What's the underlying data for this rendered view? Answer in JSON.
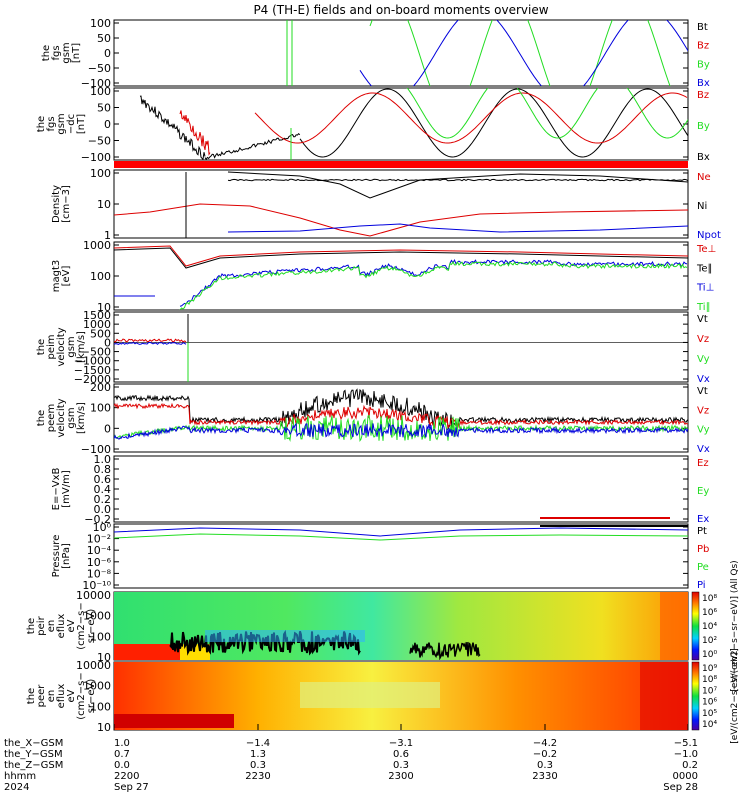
{
  "title": "P4 (TH-E) fields and on-board moments overview",
  "colors": {
    "black": "#000000",
    "red": "#dd0000",
    "green": "#22dd22",
    "blue": "#0000dd",
    "bar": "#ff0000"
  },
  "chart_data": {
    "type": "line",
    "panels": [
      {
        "id": "fgs_gsm",
        "ylabel": [
          "the",
          "fgs",
          "gsm",
          "[nT]"
        ],
        "ticks": [
          "100",
          "50",
          "0",
          "−50",
          "−100"
        ],
        "ylim": [
          -100,
          100
        ],
        "legend": [
          {
            "text": "Bt",
            "color": "black"
          },
          {
            "text": "Bz",
            "color": "red"
          },
          {
            "text": "By",
            "color": "green"
          },
          {
            "text": "Bx",
            "color": "blue"
          }
        ]
      },
      {
        "id": "fgs_gsm_dc",
        "ylabel": [
          "the",
          "fgs",
          "gsm",
          "−dc",
          "[nT]"
        ],
        "ticks": [
          "100",
          "50",
          "0",
          "−50",
          "−100"
        ],
        "ylim": [
          -120,
          100
        ],
        "legend": [
          {
            "text": "Bz",
            "color": "red"
          },
          {
            "text": "By",
            "color": "green"
          },
          {
            "text": "Bx",
            "color": "black"
          }
        ]
      },
      {
        "id": "density",
        "ylabel": [
          "Density",
          "[cm−3]"
        ],
        "ticks": [
          "100",
          "10",
          "1"
        ],
        "scale": "log",
        "legend": [
          {
            "text": "Ne",
            "color": "red"
          },
          {
            "text": "Ni",
            "color": "black"
          },
          {
            "text": "Npot",
            "color": "blue"
          }
        ]
      },
      {
        "id": "temperature",
        "ylabel": [
          "magt3",
          "[eV]"
        ],
        "ticks": [
          "1000",
          "100",
          "10"
        ],
        "scale": "log",
        "legend": [
          {
            "text": "Te⊥",
            "color": "red"
          },
          {
            "text": "Te∥",
            "color": "black"
          },
          {
            "text": "Ti⊥",
            "color": "blue"
          },
          {
            "text": "Ti∥",
            "color": "green"
          }
        ]
      },
      {
        "id": "peim_velocity",
        "ylabel": [
          "the",
          "peim",
          "velocity",
          "gsm",
          "[km/s]"
        ],
        "ticks": [
          "1500",
          "1000",
          "500",
          "0",
          "−500",
          "−1000",
          "−1500",
          "−2000"
        ],
        "ylim": [
          -2000,
          1500
        ],
        "legend": [
          {
            "text": "Vt",
            "color": "black"
          },
          {
            "text": "Vz",
            "color": "red"
          },
          {
            "text": "Vy",
            "color": "green"
          },
          {
            "text": "Vx",
            "color": "blue"
          }
        ]
      },
      {
        "id": "peem_velocity",
        "ylabel": [
          "the",
          "peem",
          "velocity",
          "gsm",
          "[km/s]"
        ],
        "ticks": [
          "200",
          "100",
          "0",
          "−100"
        ],
        "ylim": [
          -150,
          200
        ],
        "legend": [
          {
            "text": "Vt",
            "color": "black"
          },
          {
            "text": "Vz",
            "color": "red"
          },
          {
            "text": "Vy",
            "color": "green"
          },
          {
            "text": "Vx",
            "color": "blue"
          }
        ]
      },
      {
        "id": "efield",
        "ylabel": [
          "E=−VxB",
          "[mV/m]"
        ],
        "ticks": [
          "1.0",
          "0.8",
          "0.6",
          "0.4",
          "0.2",
          "0.0",
          "−0.2"
        ],
        "ylim": [
          -0.2,
          1.0
        ],
        "legend": [
          {
            "text": "Ez",
            "color": "red"
          },
          {
            "text": "Ey",
            "color": "green"
          },
          {
            "text": "Ex",
            "color": "blue"
          }
        ]
      },
      {
        "id": "pressure",
        "ylabel": [
          "Pressure",
          "[nPa]"
        ],
        "ticks": [
          "10⁰",
          "10⁻²",
          "10⁻⁴",
          "10⁻⁶",
          "10⁻⁸",
          "10⁻¹⁰"
        ],
        "scale": "log",
        "legend": [
          {
            "text": "Pt",
            "color": "black"
          },
          {
            "text": "Pb",
            "color": "red"
          },
          {
            "text": "Pe",
            "color": "green"
          },
          {
            "text": "Pi",
            "color": "blue"
          }
        ]
      },
      {
        "id": "peir_eflux",
        "ylabel": [
          "the",
          "peir",
          "en",
          "eflux",
          "eV",
          "(cm2−s−",
          "sr−eV)"
        ],
        "ticks": [
          "10000",
          "1000",
          "100",
          "10"
        ],
        "scale": "log",
        "colorbar": {
          "ticks": [
            "10⁸",
            "10⁶",
            "10⁴",
            "10²",
            "10⁰"
          ],
          "label": "[eV/(cm2−s−sr−eV)] (All Qs)"
        }
      },
      {
        "id": "peer_eflux",
        "ylabel": [
          "the",
          "peer",
          "en",
          "eflux",
          "eV",
          "(cm2−s−",
          "sr−eV)"
        ],
        "ticks": [
          "10000",
          "1000",
          "100",
          "10"
        ],
        "scale": "log",
        "colorbar": {
          "ticks": [
            "10⁹",
            "10⁸",
            "10⁷",
            "10⁶",
            "10⁵",
            "10⁴"
          ],
          "label": "[eV/(cm2−s−sr−eV)]"
        }
      }
    ],
    "x_axis": {
      "labels": [
        "the_X−GSM",
        "the_Y−GSM",
        "the_Z−GSM",
        "hhmm",
        "2024"
      ],
      "columns": [
        [
          "1.0",
          "0.7",
          "0.0",
          "2200",
          "Sep 27"
        ],
        [
          "−1.4",
          "1.3",
          "0.3",
          "2230",
          ""
        ],
        [
          "−3.1",
          "0.6",
          "0.3",
          "2300",
          ""
        ],
        [
          "−4.2",
          "−0.2",
          "0.3",
          "2330",
          ""
        ],
        [
          "−5.1",
          "−1.0",
          "0.2",
          "0000",
          "Sep 28"
        ]
      ]
    }
  }
}
